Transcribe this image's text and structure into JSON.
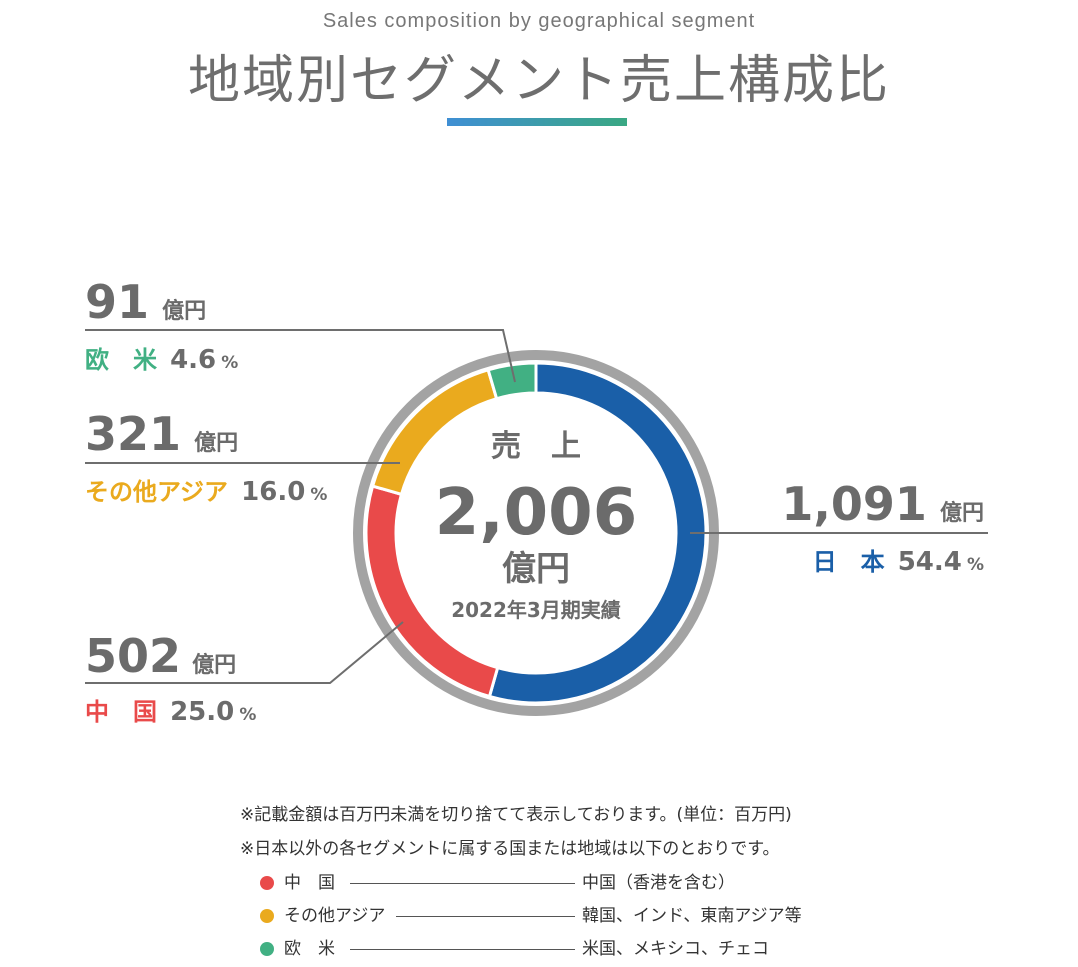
{
  "header": {
    "subtitle": "Sales composition by geographical segment",
    "title": "地域別セグメント売上構成比"
  },
  "colors": {
    "japan": "#1a5fa8",
    "china": "#e94a4a",
    "other_asia": "#eaaa1e",
    "europe_us": "#41b083",
    "ring_gray": "#a3a3a3",
    "text_gray": "#6b6b6b"
  },
  "center": {
    "label": "売　上",
    "total": "2,006",
    "unit": "億円",
    "period": "2022年3月期実績"
  },
  "chart_data": {
    "type": "pie",
    "style": "donut",
    "unit": "億円",
    "total": 2006,
    "segments": [
      {
        "key": "japan",
        "name": "日　本",
        "value": 1091,
        "value_label": "1,091",
        "unit": "億円",
        "percent": 54.4,
        "percent_label": "54.4"
      },
      {
        "key": "china",
        "name": "中　国",
        "value": 502,
        "value_label": "502",
        "unit": "億円",
        "percent": 25.0,
        "percent_label": "25.0"
      },
      {
        "key": "other_asia",
        "name": "その他アジア",
        "value": 321,
        "value_label": "321",
        "unit": "億円",
        "percent": 16.0,
        "percent_label": "16.0"
      },
      {
        "key": "europe_us",
        "name": "欧　米",
        "value": 91,
        "value_label": "91",
        "unit": "億円",
        "percent": 4.6,
        "percent_label": "4.6"
      }
    ],
    "percent_suffix": "%"
  },
  "footnotes": {
    "note1": "※記載金額は百万円未満を切り捨てて表示しております。(単位：百万円)",
    "note2": "※日本以外の各セグメントに属する国または地域は以下のとおりです。",
    "legend": [
      {
        "key": "china",
        "name": "中　国",
        "countries": "中国（香港を含む）"
      },
      {
        "key": "other_asia",
        "name": "その他アジア",
        "countries": "韓国、インド、東南アジア等"
      },
      {
        "key": "europe_us",
        "name": "欧　米",
        "countries": "米国、メキシコ、チェコ"
      }
    ]
  }
}
